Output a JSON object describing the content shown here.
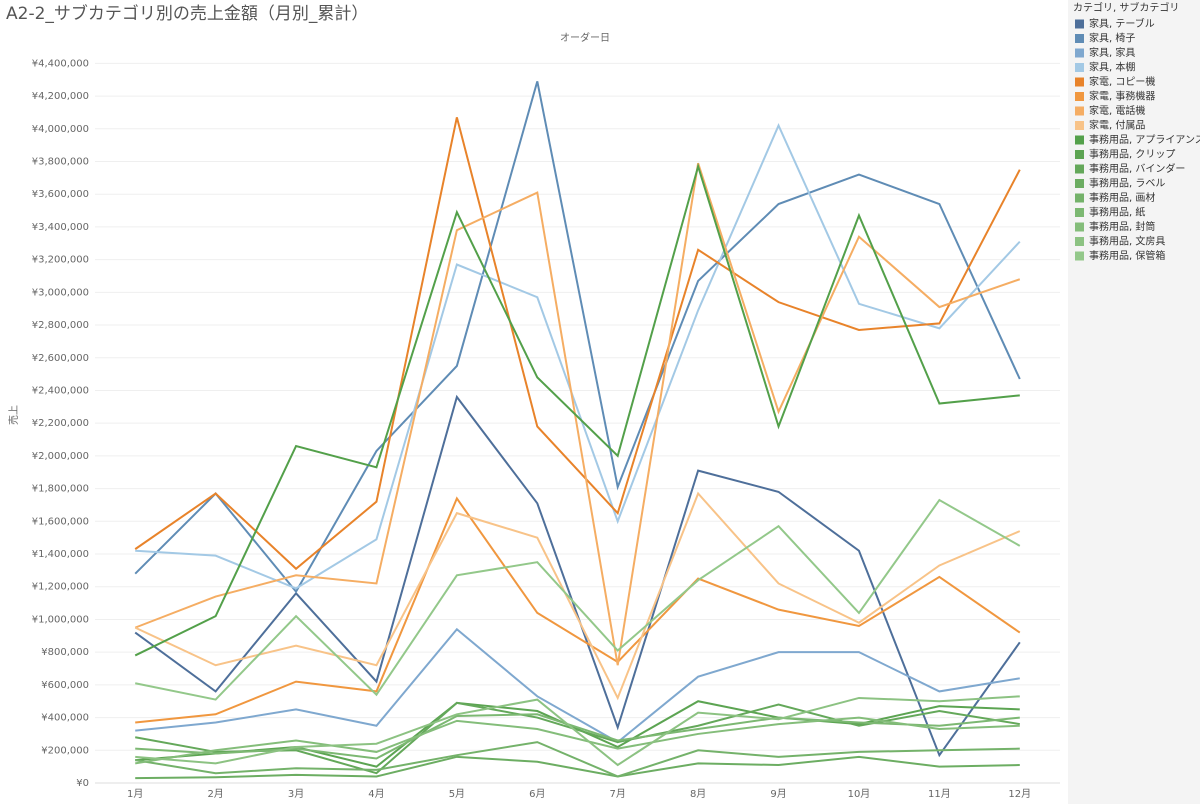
{
  "chart_data": {
    "type": "line",
    "title": "A2-2_サブカテゴリ別の売上金額（月別_累計）",
    "column_header": "オーダー日",
    "y_label": "売上",
    "legend_title": "カテゴリ, サブカテゴリ",
    "legend_position": "right",
    "grid": true,
    "categories": [
      "1月",
      "2月",
      "3月",
      "4月",
      "5月",
      "6月",
      "7月",
      "8月",
      "9月",
      "10月",
      "11月",
      "12月"
    ],
    "ylim": [
      0,
      4500000
    ],
    "yticks": [
      {
        "value": 0,
        "label": "¥0"
      },
      {
        "value": 200000,
        "label": "¥200,000"
      },
      {
        "value": 400000,
        "label": "¥400,000"
      },
      {
        "value": 600000,
        "label": "¥600,000"
      },
      {
        "value": 800000,
        "label": "¥800,000"
      },
      {
        "value": 1000000,
        "label": "¥1,000,000"
      },
      {
        "value": 1200000,
        "label": "¥1,200,000"
      },
      {
        "value": 1400000,
        "label": "¥1,400,000"
      },
      {
        "value": 1600000,
        "label": "¥1,600,000"
      },
      {
        "value": 1800000,
        "label": "¥1,800,000"
      },
      {
        "value": 2000000,
        "label": "¥2,000,000"
      },
      {
        "value": 2200000,
        "label": "¥2,200,000"
      },
      {
        "value": 2400000,
        "label": "¥2,400,000"
      },
      {
        "value": 2600000,
        "label": "¥2,600,000"
      },
      {
        "value": 2800000,
        "label": "¥2,800,000"
      },
      {
        "value": 3000000,
        "label": "¥3,000,000"
      },
      {
        "value": 3200000,
        "label": "¥3,200,000"
      },
      {
        "value": 3400000,
        "label": "¥3,400,000"
      },
      {
        "value": 3600000,
        "label": "¥3,600,000"
      },
      {
        "value": 3800000,
        "label": "¥3,800,000"
      },
      {
        "value": 4000000,
        "label": "¥4,000,000"
      },
      {
        "value": 4200000,
        "label": "¥4,200,000"
      },
      {
        "value": 4400000,
        "label": "¥4,400,000"
      }
    ],
    "series": [
      {
        "name": "家具, テーブル",
        "color": "#4e6f9a",
        "values": [
          920000,
          560000,
          1160000,
          620000,
          2360000,
          1710000,
          340000,
          1910000,
          1780000,
          1420000,
          170000,
          860000
        ]
      },
      {
        "name": "家具, 椅子",
        "color": "#5f8cb5",
        "values": [
          1280000,
          1770000,
          1170000,
          2030000,
          2550000,
          4290000,
          1810000,
          3070000,
          3540000,
          3720000,
          3540000,
          2470000
        ]
      },
      {
        "name": "家具, 家具",
        "color": "#7fa8cf",
        "values": [
          320000,
          370000,
          450000,
          350000,
          940000,
          530000,
          250000,
          650000,
          800000,
          800000,
          560000,
          640000
        ]
      },
      {
        "name": "家具, 本棚",
        "color": "#a3c9e5",
        "values": [
          1420000,
          1390000,
          1190000,
          1490000,
          3170000,
          2970000,
          1600000,
          2890000,
          4020000,
          2930000,
          2780000,
          3310000
        ]
      },
      {
        "name": "家電, コピー機",
        "color": "#e8832a",
        "values": [
          1430000,
          1770000,
          1310000,
          1720000,
          4070000,
          2180000,
          1650000,
          3260000,
          2940000,
          2770000,
          2810000,
          3750000
        ]
      },
      {
        "name": "家電, 事務機器",
        "color": "#f0973f",
        "values": [
          370000,
          420000,
          620000,
          560000,
          1740000,
          1040000,
          740000,
          1250000,
          1060000,
          960000,
          1260000,
          920000
        ]
      },
      {
        "name": "家電, 電話機",
        "color": "#f5ad63",
        "values": [
          950000,
          1140000,
          1270000,
          1220000,
          3380000,
          3610000,
          720000,
          3790000,
          2270000,
          3340000,
          2910000,
          3080000
        ]
      },
      {
        "name": "家電, 付属品",
        "color": "#f8c388",
        "values": [
          950000,
          720000,
          840000,
          720000,
          1650000,
          1500000,
          520000,
          1770000,
          1220000,
          980000,
          1330000,
          1540000
        ]
      },
      {
        "name": "事務用品, アプライアンス",
        "color": "#53a04a",
        "values": [
          780000,
          1020000,
          2060000,
          1930000,
          3490000,
          2480000,
          2000000,
          3770000,
          2180000,
          3470000,
          2320000,
          2370000
        ]
      },
      {
        "name": "事務用品, クリップ",
        "color": "#5ca452",
        "values": [
          140000,
          180000,
          220000,
          100000,
          490000,
          440000,
          220000,
          500000,
          400000,
          360000,
          470000,
          450000
        ]
      },
      {
        "name": "事務用品, バインダー",
        "color": "#64a85a",
        "values": [
          280000,
          190000,
          200000,
          60000,
          490000,
          400000,
          250000,
          350000,
          480000,
          350000,
          440000,
          360000
        ]
      },
      {
        "name": "事務用品, ラベル",
        "color": "#6cad62",
        "values": [
          30000,
          35000,
          50000,
          40000,
          160000,
          130000,
          40000,
          120000,
          110000,
          160000,
          100000,
          110000
        ]
      },
      {
        "name": "事務用品, 画材",
        "color": "#74b26a",
        "values": [
          140000,
          60000,
          90000,
          80000,
          170000,
          250000,
          40000,
          200000,
          160000,
          190000,
          200000,
          210000
        ]
      },
      {
        "name": "事務用品, 紙",
        "color": "#7cb872",
        "values": [
          210000,
          180000,
          210000,
          150000,
          410000,
          420000,
          260000,
          330000,
          400000,
          370000,
          350000,
          400000
        ]
      },
      {
        "name": "事務用品, 封筒",
        "color": "#84bd7a",
        "values": [
          120000,
          200000,
          260000,
          190000,
          380000,
          330000,
          210000,
          300000,
          360000,
          400000,
          330000,
          350000
        ]
      },
      {
        "name": "事務用品, 文房具",
        "color": "#8cc282",
        "values": [
          160000,
          120000,
          220000,
          240000,
          420000,
          510000,
          110000,
          430000,
          390000,
          520000,
          500000,
          530000
        ]
      },
      {
        "name": "事務用品, 保管箱",
        "color": "#93c88a",
        "values": [
          610000,
          510000,
          1020000,
          540000,
          1270000,
          1350000,
          810000,
          1240000,
          1570000,
          1040000,
          1730000,
          1450000
        ]
      }
    ]
  }
}
